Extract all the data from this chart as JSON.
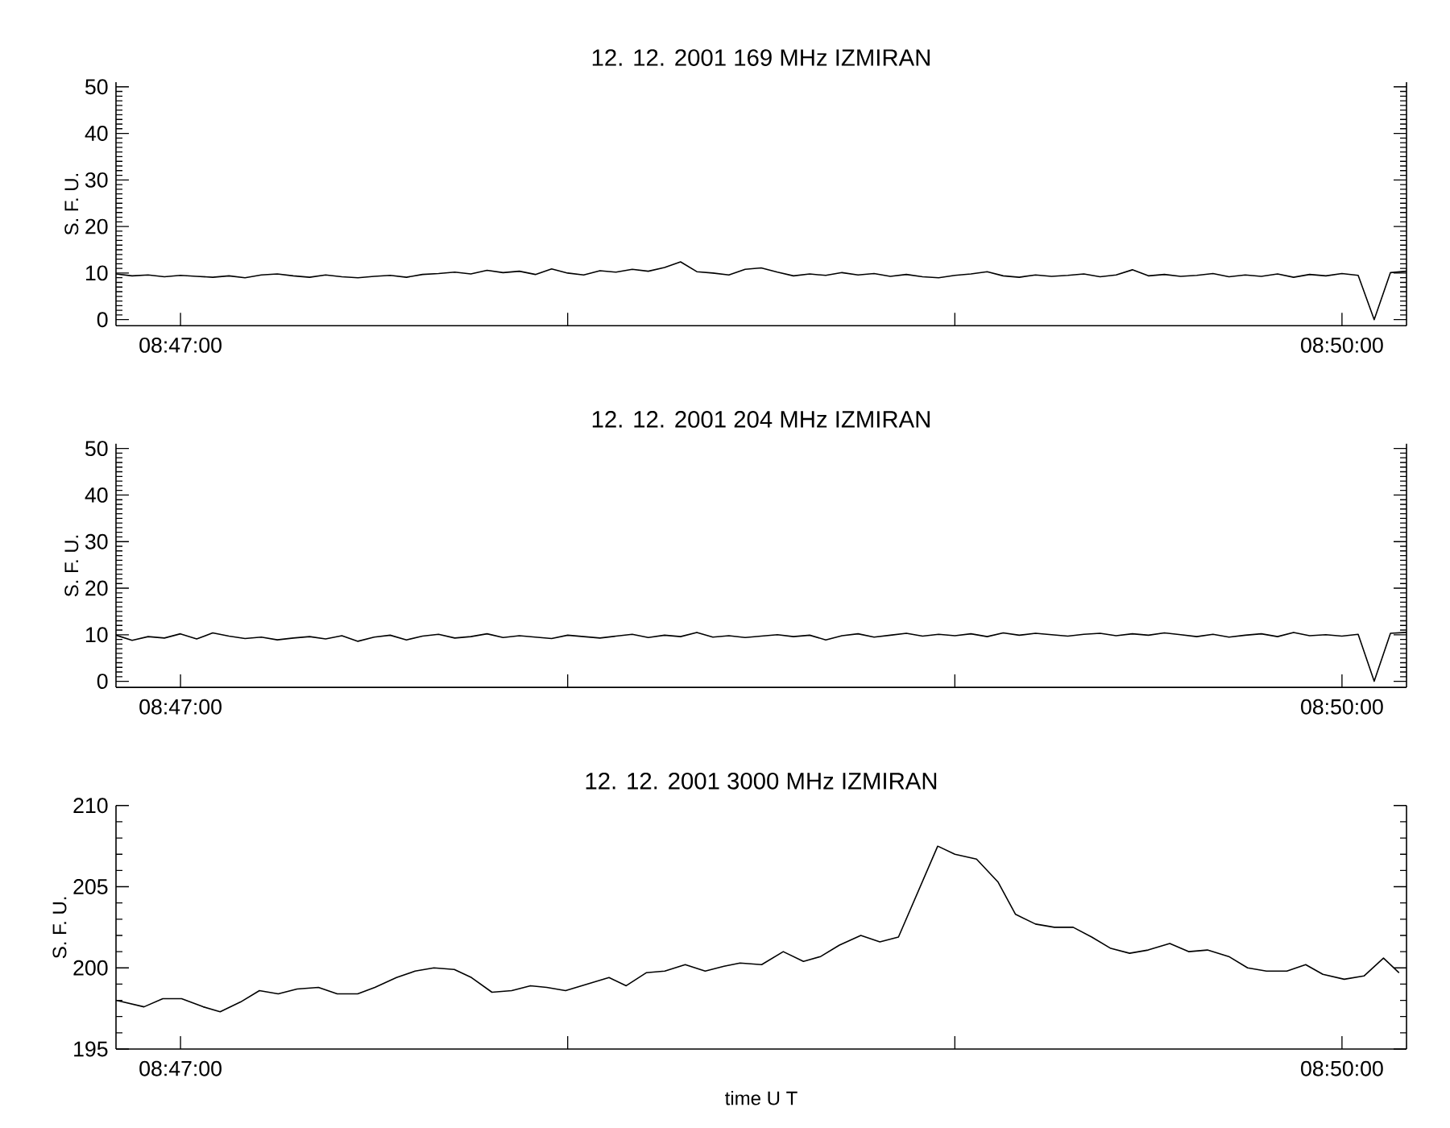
{
  "chart_data": [
    {
      "type": "line",
      "title": "12. 12. 2001 169 MHz IZMIRAN",
      "ylabel": "S. F. U.",
      "x": [
        8.78056,
        8.78125,
        8.78194,
        8.78264,
        8.78333,
        8.78403,
        8.78472,
        8.78542,
        8.78611,
        8.78681,
        8.7875,
        8.78819,
        8.78889,
        8.78958,
        8.79028,
        8.79097,
        8.79167,
        8.79236,
        8.79306,
        8.79375,
        8.79444,
        8.79514,
        8.79583,
        8.79653,
        8.79722,
        8.79792,
        8.79861,
        8.79931,
        8.8,
        8.80069,
        8.80139,
        8.80208,
        8.80278,
        8.80347,
        8.80417,
        8.80486,
        8.80556,
        8.80625,
        8.80694,
        8.80764,
        8.80833,
        8.80903,
        8.80972,
        8.81042,
        8.81111,
        8.81181,
        8.8125,
        8.81319,
        8.81389,
        8.81458,
        8.81528,
        8.81597,
        8.81667,
        8.81736,
        8.81806,
        8.81875,
        8.81944,
        8.82014,
        8.82083,
        8.82153,
        8.82222,
        8.82292,
        8.82361,
        8.82431,
        8.825,
        8.82569,
        8.82639,
        8.82708,
        8.82778,
        8.82847,
        8.82917,
        8.82986,
        8.83056,
        8.83125,
        8.83194,
        8.83264,
        8.83333,
        8.83403,
        8.83472,
        8.83542,
        8.83611
      ],
      "series": [
        {
          "color": "#000000",
          "values": [
            9.8,
            9.4,
            9.6,
            9.2,
            9.5,
            9.3,
            9.1,
            9.4,
            9.0,
            9.6,
            9.8,
            9.4,
            9.1,
            9.6,
            9.2,
            9.0,
            9.3,
            9.5,
            9.1,
            9.7,
            9.9,
            10.2,
            9.8,
            10.6,
            10.1,
            10.4,
            9.7,
            10.9,
            10.0,
            9.6,
            10.5,
            10.2,
            10.8,
            10.4,
            11.2,
            12.4,
            10.3,
            10.0,
            9.6,
            10.8,
            11.1,
            10.2,
            9.4,
            9.8,
            9.5,
            10.1,
            9.6,
            9.9,
            9.3,
            9.7,
            9.2,
            9.0,
            9.5,
            9.8,
            10.3,
            9.4,
            9.1,
            9.6,
            9.3,
            9.5,
            9.8,
            9.2,
            9.6,
            10.7,
            9.4,
            9.7,
            9.3,
            9.5,
            9.9,
            9.2,
            9.6,
            9.3,
            9.8,
            9.1,
            9.7,
            9.4,
            9.9,
            9.5,
            0.0,
            10.1,
            10.4
          ]
        }
      ],
      "xlim": [
        8.780556,
        8.836111
      ],
      "xticks": [
        {
          "value": 8.783333,
          "label": "08:47:00"
        },
        {
          "value": 8.8,
          "label": null
        },
        {
          "value": 8.816667,
          "label": null
        },
        {
          "value": 8.833333,
          "label": "08:50:00"
        }
      ],
      "ylim": [
        -1.3,
        51
      ],
      "yticks": [
        0,
        10,
        20,
        30,
        40,
        50
      ]
    },
    {
      "type": "line",
      "title": "12. 12. 2001 204 MHz IZMIRAN",
      "ylabel": "S. F. U.",
      "x": [
        8.78056,
        8.78125,
        8.78194,
        8.78264,
        8.78333,
        8.78403,
        8.78472,
        8.78542,
        8.78611,
        8.78681,
        8.7875,
        8.78819,
        8.78889,
        8.78958,
        8.79028,
        8.79097,
        8.79167,
        8.79236,
        8.79306,
        8.79375,
        8.79444,
        8.79514,
        8.79583,
        8.79653,
        8.79722,
        8.79792,
        8.79861,
        8.79931,
        8.8,
        8.80069,
        8.80139,
        8.80208,
        8.80278,
        8.80347,
        8.80417,
        8.80486,
        8.80556,
        8.80625,
        8.80694,
        8.80764,
        8.80833,
        8.80903,
        8.80972,
        8.81042,
        8.81111,
        8.81181,
        8.8125,
        8.81319,
        8.81389,
        8.81458,
        8.81528,
        8.81597,
        8.81667,
        8.81736,
        8.81806,
        8.81875,
        8.81944,
        8.82014,
        8.82083,
        8.82153,
        8.82222,
        8.82292,
        8.82361,
        8.82431,
        8.825,
        8.82569,
        8.82639,
        8.82708,
        8.82778,
        8.82847,
        8.82917,
        8.82986,
        8.83056,
        8.83125,
        8.83194,
        8.83264,
        8.83333,
        8.83403,
        8.83472,
        8.83542,
        8.83611
      ],
      "series": [
        {
          "color": "#000000",
          "values": [
            9.9,
            8.8,
            9.6,
            9.3,
            10.2,
            9.1,
            10.4,
            9.7,
            9.2,
            9.5,
            8.9,
            9.3,
            9.6,
            9.1,
            9.8,
            8.6,
            9.5,
            9.9,
            8.9,
            9.7,
            10.1,
            9.3,
            9.6,
            10.2,
            9.4,
            9.8,
            9.5,
            9.2,
            9.9,
            9.6,
            9.3,
            9.7,
            10.1,
            9.4,
            9.9,
            9.6,
            10.5,
            9.5,
            9.8,
            9.4,
            9.7,
            10.0,
            9.6,
            9.9,
            8.9,
            9.8,
            10.2,
            9.5,
            9.9,
            10.3,
            9.7,
            10.1,
            9.8,
            10.2,
            9.6,
            10.4,
            9.9,
            10.3,
            10.0,
            9.7,
            10.1,
            10.3,
            9.8,
            10.2,
            9.9,
            10.4,
            10.0,
            9.6,
            10.1,
            9.5,
            9.9,
            10.2,
            9.6,
            10.5,
            9.8,
            10.0,
            9.7,
            10.1,
            0.0,
            10.3,
            10.5
          ]
        }
      ],
      "xlim": [
        8.780556,
        8.836111
      ],
      "xticks": [
        {
          "value": 8.783333,
          "label": "08:47:00"
        },
        {
          "value": 8.8,
          "label": null
        },
        {
          "value": 8.816667,
          "label": null
        },
        {
          "value": 8.833333,
          "label": "08:50:00"
        }
      ],
      "ylim": [
        -1.3,
        51
      ],
      "yticks": [
        0,
        10,
        20,
        30,
        40,
        50
      ]
    },
    {
      "type": "line",
      "title": "12. 12. 2001 3000 MHz IZMIRAN",
      "ylabel": "S. F. U.",
      "xlabel": "time U T",
      "x": [
        8.78056,
        8.78176,
        8.78257,
        8.78338,
        8.78431,
        8.78504,
        8.78592,
        8.78673,
        8.78754,
        8.78835,
        8.78927,
        8.79008,
        8.79096,
        8.7917,
        8.79263,
        8.79343,
        8.79424,
        8.79512,
        8.79586,
        8.79674,
        8.79759,
        8.7984,
        8.7991,
        8.79991,
        8.80083,
        8.80178,
        8.80252,
        8.80338,
        8.80418,
        8.80506,
        8.80592,
        8.80673,
        8.80742,
        8.80835,
        8.80928,
        8.81015,
        8.81089,
        8.8117,
        8.81262,
        8.81344,
        8.81424,
        8.81593,
        8.81667,
        8.8176,
        8.81852,
        8.81928,
        8.82014,
        8.82095,
        8.82176,
        8.82256,
        8.82338,
        8.82419,
        8.82499,
        8.82592,
        8.82673,
        8.82754,
        8.82846,
        8.82927,
        8.83008,
        8.83096,
        8.83177,
        8.83251,
        8.83343,
        8.83428,
        8.83512,
        8.83579
      ],
      "series": [
        {
          "color": "#000000",
          "values": [
            198.0,
            197.6,
            198.1,
            198.1,
            197.6,
            197.3,
            197.9,
            198.6,
            198.4,
            198.7,
            198.8,
            198.4,
            198.4,
            198.8,
            199.4,
            199.8,
            200.0,
            199.9,
            199.4,
            198.5,
            198.6,
            198.9,
            198.8,
            198.6,
            199.0,
            199.4,
            198.9,
            199.7,
            199.8,
            200.2,
            199.8,
            200.1,
            200.3,
            200.2,
            201.0,
            200.4,
            200.7,
            201.4,
            202.0,
            201.6,
            201.9,
            207.5,
            207.0,
            206.7,
            205.3,
            203.3,
            202.7,
            202.5,
            202.5,
            201.9,
            201.2,
            200.9,
            201.1,
            201.5,
            201.0,
            201.1,
            200.7,
            200.0,
            199.8,
            199.8,
            200.2,
            199.6,
            199.3,
            199.5,
            200.6,
            199.7
          ]
        }
      ],
      "xlim": [
        8.780556,
        8.836111
      ],
      "xticks": [
        {
          "value": 8.783333,
          "label": "08:47:00"
        },
        {
          "value": 8.8,
          "label": null
        },
        {
          "value": 8.816667,
          "label": null
        },
        {
          "value": 8.833333,
          "label": "08:50:00"
        }
      ],
      "ylim": [
        195,
        210
      ],
      "yticks": [
        195,
        200,
        205,
        210
      ]
    }
  ]
}
